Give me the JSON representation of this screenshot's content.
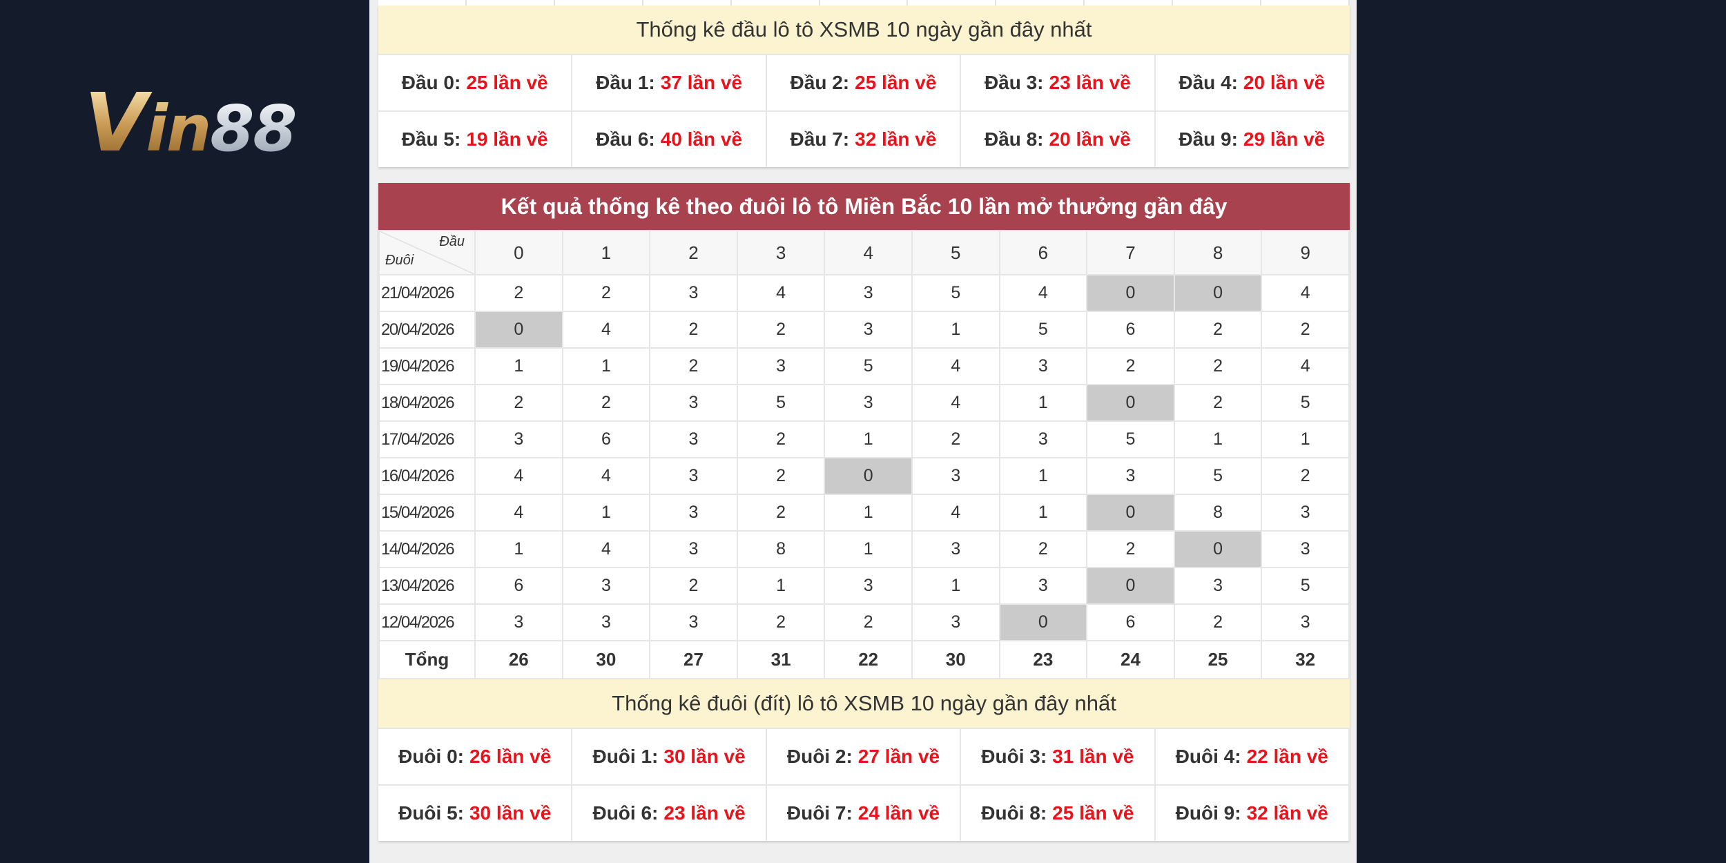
{
  "brand": {
    "logo_text": "Vin88"
  },
  "dau_stats": {
    "title": "Thống kê đầu lô tô XSMB 10 ngày gần đây nhất",
    "items": [
      {
        "label": "Đầu 0:",
        "value": "25 lần về"
      },
      {
        "label": "Đầu 1:",
        "value": "37 lần về"
      },
      {
        "label": "Đầu 2:",
        "value": "25 lần về"
      },
      {
        "label": "Đầu 3:",
        "value": "23 lần về"
      },
      {
        "label": "Đầu 4:",
        "value": "20 lần về"
      },
      {
        "label": "Đầu 5:",
        "value": "19 lần về"
      },
      {
        "label": "Đầu 6:",
        "value": "40 lần về"
      },
      {
        "label": "Đầu 7:",
        "value": "32 lần về"
      },
      {
        "label": "Đầu 8:",
        "value": "20 lần về"
      },
      {
        "label": "Đầu 9:",
        "value": "29 lần về"
      }
    ]
  },
  "result_table": {
    "title": "Kết quả thống kê theo đuôi lô tô Miền Bắc 10 lần mở thưởng gần đây",
    "corner_top": "Đầu",
    "corner_bottom": "Đuôi",
    "columns": [
      "0",
      "1",
      "2",
      "3",
      "4",
      "5",
      "6",
      "7",
      "8",
      "9"
    ],
    "rows": [
      {
        "date": "21/04/2026",
        "values": [
          "2",
          "2",
          "3",
          "4",
          "3",
          "5",
          "4",
          "0",
          "0",
          "4"
        ]
      },
      {
        "date": "20/04/2026",
        "values": [
          "0",
          "4",
          "2",
          "2",
          "3",
          "1",
          "5",
          "6",
          "2",
          "2"
        ]
      },
      {
        "date": "19/04/2026",
        "values": [
          "1",
          "1",
          "2",
          "3",
          "5",
          "4",
          "3",
          "2",
          "2",
          "4"
        ]
      },
      {
        "date": "18/04/2026",
        "values": [
          "2",
          "2",
          "3",
          "5",
          "3",
          "4",
          "1",
          "0",
          "2",
          "5"
        ]
      },
      {
        "date": "17/04/2026",
        "values": [
          "3",
          "6",
          "3",
          "2",
          "1",
          "2",
          "3",
          "5",
          "1",
          "1"
        ]
      },
      {
        "date": "16/04/2026",
        "values": [
          "4",
          "4",
          "3",
          "2",
          "0",
          "3",
          "1",
          "3",
          "5",
          "2"
        ]
      },
      {
        "date": "15/04/2026",
        "values": [
          "4",
          "1",
          "3",
          "2",
          "1",
          "4",
          "1",
          "0",
          "8",
          "3"
        ]
      },
      {
        "date": "14/04/2026",
        "values": [
          "1",
          "4",
          "3",
          "8",
          "1",
          "3",
          "2",
          "2",
          "0",
          "3"
        ]
      },
      {
        "date": "13/04/2026",
        "values": [
          "6",
          "3",
          "2",
          "1",
          "3",
          "1",
          "3",
          "0",
          "3",
          "5"
        ]
      },
      {
        "date": "12/04/2026",
        "values": [
          "3",
          "3",
          "3",
          "2",
          "2",
          "3",
          "0",
          "6",
          "2",
          "3"
        ]
      }
    ],
    "total_label": "Tổng",
    "totals": [
      "26",
      "30",
      "27",
      "31",
      "22",
      "30",
      "23",
      "24",
      "25",
      "32"
    ],
    "highlight_color": "#cacaca",
    "header_color": "#a8424f"
  },
  "duoi_stats": {
    "title": "Thống kê đuôi (đít) lô tô XSMB 10 ngày gần đây nhất",
    "items": [
      {
        "label": "Đuôi 0:",
        "value": "26 lần về"
      },
      {
        "label": "Đuôi 1:",
        "value": "30 lần về"
      },
      {
        "label": "Đuôi 2:",
        "value": "27 lần về"
      },
      {
        "label": "Đuôi 3:",
        "value": "31 lần về"
      },
      {
        "label": "Đuôi 4:",
        "value": "22 lần về"
      },
      {
        "label": "Đuôi 5:",
        "value": "30 lần về"
      },
      {
        "label": "Đuôi 6:",
        "value": "23 lần về"
      },
      {
        "label": "Đuôi 7:",
        "value": "24 lần về"
      },
      {
        "label": "Đuôi 8:",
        "value": "25 lần về"
      },
      {
        "label": "Đuôi 9:",
        "value": "32 lần về"
      }
    ]
  }
}
